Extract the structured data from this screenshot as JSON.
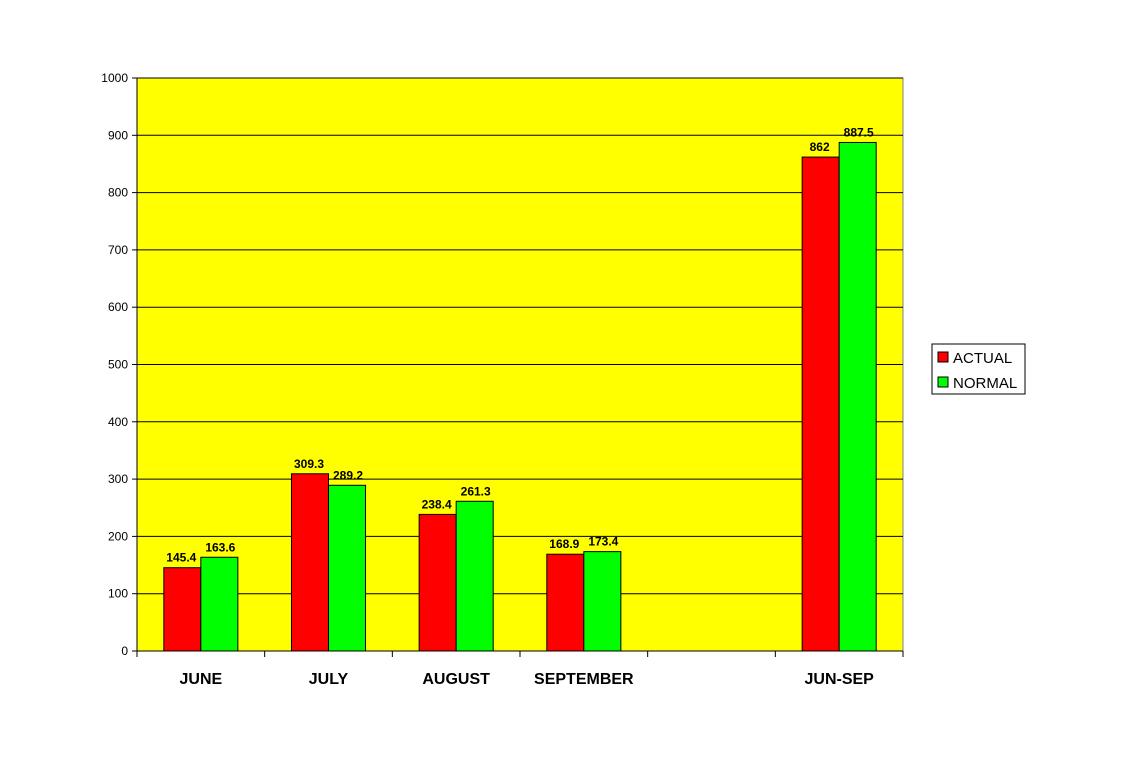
{
  "chart_data": {
    "type": "bar",
    "categories": [
      "JUNE",
      "JULY",
      "AUGUST",
      "SEPTEMBER",
      "",
      "JUN-SEP"
    ],
    "series": [
      {
        "name": "ACTUAL",
        "color": "#ff0000",
        "values": [
          145.4,
          309.3,
          238.4,
          168.9,
          null,
          862
        ]
      },
      {
        "name": "NORMAL",
        "color": "#00ff00",
        "values": [
          163.6,
          289.2,
          261.3,
          173.4,
          null,
          887.5
        ]
      }
    ],
    "data_labels": [
      [
        "145.4",
        "309.3",
        "238.4",
        "168.9",
        "",
        "862"
      ],
      [
        "163.6",
        "289.2",
        "261.3",
        "173.4",
        "",
        "887.5"
      ]
    ],
    "ylim": [
      0,
      1000
    ],
    "yticks": [
      "0",
      "100",
      "200",
      "300",
      "400",
      "500",
      "600",
      "700",
      "800",
      "900",
      "1000"
    ],
    "title": "",
    "xlabel": "",
    "ylabel": "",
    "grid": true,
    "plot_background": "#ffff00",
    "legend_position": "right"
  }
}
